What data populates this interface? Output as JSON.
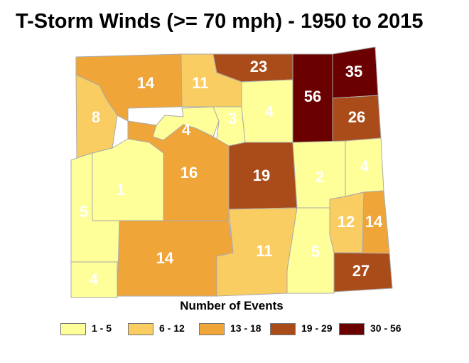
{
  "title": "T-Storm Winds (>= 70 mph) - 1950 to 2015",
  "legend": {
    "title": "Number of Events",
    "classes": [
      {
        "label": "1 - 5",
        "color": "#ffff99"
      },
      {
        "label": "6 - 12",
        "color": "#f9cd62"
      },
      {
        "label": "13 - 18",
        "color": "#f0a539"
      },
      {
        "label": "19 - 29",
        "color": "#aa4c1a"
      },
      {
        "label": "30 - 56",
        "color": "#6b0000"
      }
    ]
  },
  "counties": [
    {
      "value": "14"
    },
    {
      "value": "11"
    },
    {
      "value": "23"
    },
    {
      "value": "56"
    },
    {
      "value": "35"
    },
    {
      "value": "8"
    },
    {
      "value": "4"
    },
    {
      "value": "3"
    },
    {
      "value": "4"
    },
    {
      "value": "26"
    },
    {
      "value": "1"
    },
    {
      "value": "16"
    },
    {
      "value": "19"
    },
    {
      "value": "2"
    },
    {
      "value": "4"
    },
    {
      "value": "5"
    },
    {
      "value": "12"
    },
    {
      "value": "14"
    },
    {
      "value": "14"
    },
    {
      "value": "11"
    },
    {
      "value": "5"
    },
    {
      "value": "4"
    },
    {
      "value": "27"
    }
  ]
}
